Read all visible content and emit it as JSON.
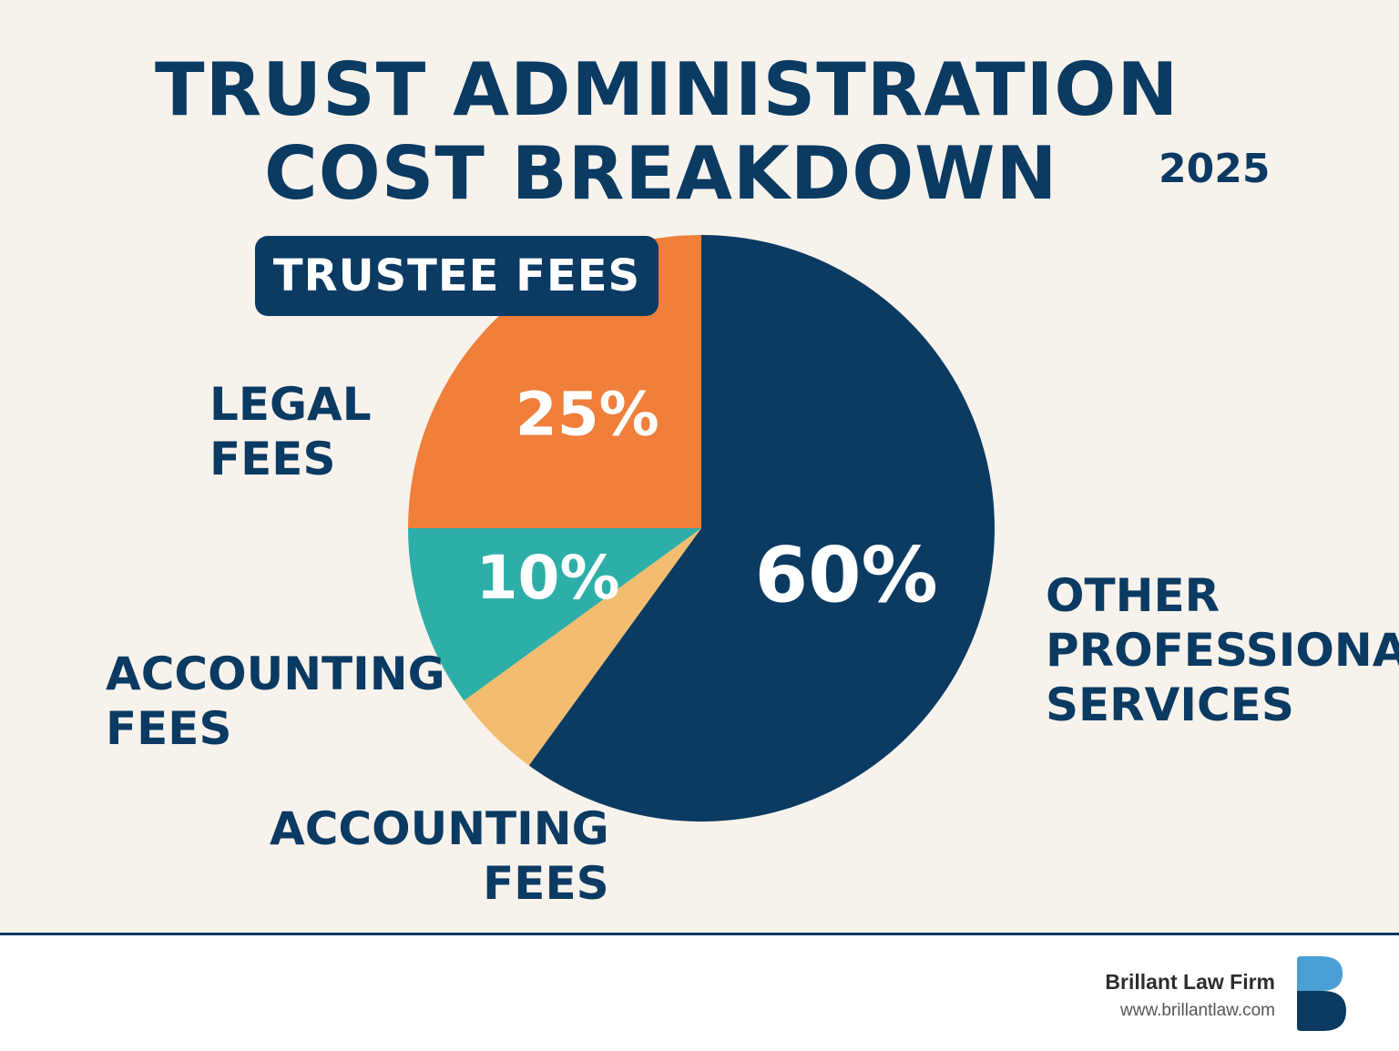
{
  "title_lines": [
    "TRUST ADMINISTRATION",
    "COST BREAKDOWN"
  ],
  "subtitle": "2025",
  "badge": "TRUSTEE FEES",
  "labels": {
    "legal": [
      "LEGAL",
      "FEES"
    ],
    "accounting_left": [
      "ACCOUNTING",
      "FEES"
    ],
    "accounting_bottom": [
      "ACCOUNTING",
      "FEES"
    ],
    "other": [
      "OTHER",
      "PROFESSIONAL",
      "SERVICES"
    ]
  },
  "chart_data": {
    "type": "pie",
    "title": "TRUST ADMINISTRATION COST BREAKDOWN",
    "subtitle": "2025",
    "slices": [
      {
        "label": "OTHER PROFESSIONAL SERVICES",
        "value": 60,
        "value_label": "60%",
        "color": "#0b3a62"
      },
      {
        "label": "ACCOUNTING FEES",
        "value": 5,
        "value_label": "",
        "color": "#f2bd6e"
      },
      {
        "label": "ACCOUNTING FEES",
        "value": 10,
        "value_label": "10%",
        "color": "#2eaea8"
      },
      {
        "label": "LEGAL FEES",
        "value": 25,
        "value_label": "25%",
        "color": "#ef7f3a"
      }
    ]
  },
  "footer": {
    "firm_name": "Brillant Law Firm",
    "firm_url": "www.brillantlaw.com",
    "logo_icon": "b-logo-icon",
    "logo_colors": [
      "#4a9fd4",
      "#0b3a62"
    ]
  }
}
